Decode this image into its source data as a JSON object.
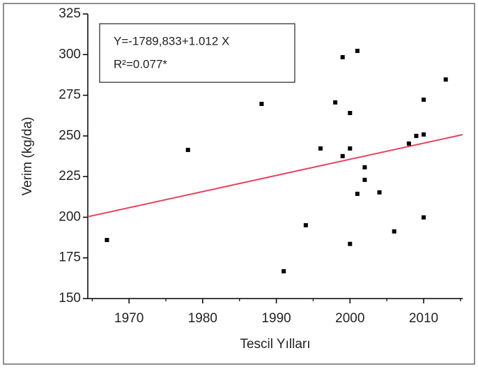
{
  "chart_data": {
    "type": "scatter",
    "xlabel": "Tescil Yılları",
    "ylabel": "Verim (kg/da)",
    "annotations": [
      "Y=-1789,833+1.012 X",
      "R²=0.077*"
    ],
    "x": [
      1967,
      1978,
      1988,
      1991,
      1994,
      1996,
      1998,
      1999,
      1999,
      2000,
      2000,
      2000,
      2001,
      2001,
      2002,
      2002,
      2004,
      2006,
      2008,
      2009,
      2010,
      2010,
      2010,
      2013
    ],
    "values": [
      186,
      241.4,
      269.7,
      166.8,
      195.1,
      242.3,
      270.6,
      298.4,
      237.6,
      264.1,
      242.3,
      183.6,
      302.3,
      214.4,
      230.7,
      223,
      215.3,
      191.3,
      245.3,
      250,
      272.3,
      250.9,
      199.9,
      284.7
    ],
    "color": "#000000",
    "fit_line": {
      "x": [
        1964.4,
        2015.3
      ],
      "y": [
        200.3,
        250.8
      ],
      "color": "#e8405a"
    },
    "xlim": [
      1964.4,
      2015.3
    ],
    "ylim": [
      150,
      325
    ],
    "xticks": [
      1970,
      1980,
      1990,
      2000,
      2010
    ],
    "xminorticks": [
      1965,
      1975,
      1985,
      1995,
      2005,
      2015
    ],
    "yticks": [
      150,
      175,
      200,
      225,
      250,
      275,
      300,
      325
    ]
  }
}
